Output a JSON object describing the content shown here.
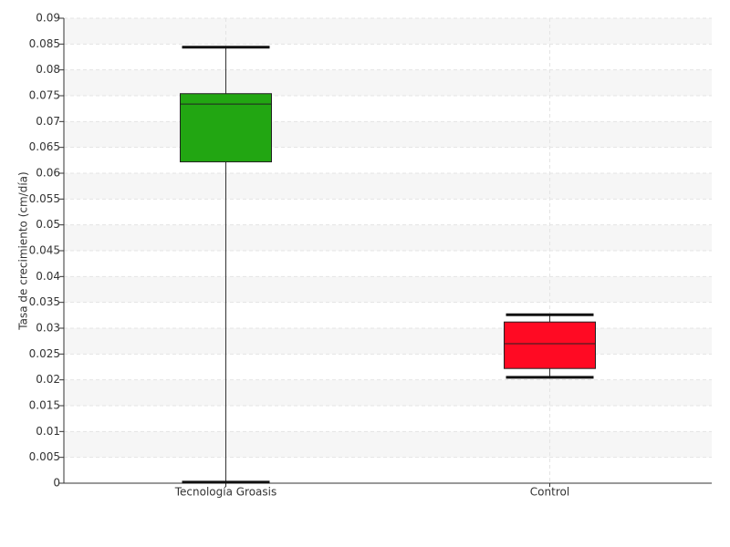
{
  "chart_data": {
    "type": "box",
    "y_label": "Tasa de crecimiento (cm/día)",
    "categories": [
      "Tecnología Groasis",
      "Control"
    ],
    "boxes": [
      {
        "min": 0.0002,
        "q1": 0.0622,
        "median": 0.0734,
        "q3": 0.0754,
        "max": 0.0844,
        "color": "#22a612"
      },
      {
        "min": 0.0205,
        "q1": 0.0222,
        "median": 0.027,
        "q3": 0.0312,
        "max": 0.0326,
        "color": "#ff0a23"
      }
    ],
    "ylim": [
      0,
      0.09
    ],
    "yticks": [
      0,
      0.005,
      0.01,
      0.015,
      0.02,
      0.025,
      0.03,
      0.035,
      0.04,
      0.045,
      0.05,
      0.055,
      0.06,
      0.065,
      0.07,
      0.075,
      0.08,
      0.085,
      0.09
    ],
    "grid": true
  }
}
